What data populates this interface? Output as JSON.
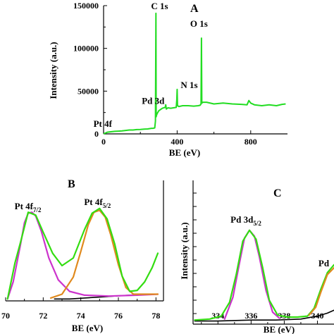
{
  "colors": {
    "survey": "#22dd22",
    "envelope": "#33dd11",
    "pt72": "#cc33cc",
    "pt52": "#e08a1e",
    "baseline": "#000000",
    "axis": "#000000"
  },
  "chart_data": [
    {
      "type": "line",
      "panel": "A",
      "xlabel": "BE (eV)",
      "ylabel": "Intensity (a.u.)",
      "xlim": [
        0,
        1000
      ],
      "ylim": [
        0,
        150000
      ],
      "xticks": [
        0,
        400,
        800
      ],
      "yticks": [
        0,
        50000,
        100000,
        150000
      ],
      "grid": false,
      "legend": "none",
      "annotations": [
        {
          "text": "C 1s",
          "x": 285,
          "y": 141000
        },
        {
          "text": "O 1s",
          "x": 532,
          "y": 112000
        },
        {
          "text": "N 1s",
          "x": 400,
          "y": 52000
        },
        {
          "text": "Pd 3d",
          "x": 338,
          "y": 35000
        },
        {
          "text": "Pt 4f",
          "x": 72,
          "y": 5000
        }
      ],
      "series": [
        {
          "x": [
            0,
            20,
            40,
            60,
            80,
            100,
            120,
            140,
            160,
            180,
            200,
            220,
            240,
            260,
            270,
            278,
            282,
            284.5,
            286,
            288,
            292,
            300,
            320,
            335,
            338,
            341,
            350,
            365,
            380,
            395,
            398,
            400,
            402,
            410,
            430,
            460,
            490,
            515,
            525,
            530,
            532,
            534,
            540,
            560,
            600,
            650,
            700,
            750,
            780,
            790,
            800,
            820,
            860,
            900,
            940,
            970,
            990
          ],
          "y": [
            0,
            2000,
            2500,
            3000,
            3200,
            3500,
            4000,
            4500,
            4500,
            5000,
            5200,
            5500,
            5800,
            6500,
            6500,
            7000,
            15000,
            141000,
            20000,
            22000,
            24000,
            27000,
            30000,
            31000,
            34000,
            29000,
            30500,
            30000,
            30500,
            31000,
            40000,
            52000,
            33000,
            32000,
            33000,
            33000,
            32500,
            33000,
            33500,
            35000,
            112000,
            36000,
            37000,
            37000,
            35000,
            36000,
            35000,
            34500,
            34000,
            39000,
            36000,
            34000,
            33000,
            34000,
            33000,
            34500,
            35000
          ]
        }
      ]
    },
    {
      "type": "line",
      "panel": "B",
      "xlabel": "BE (eV)",
      "xlim": [
        70,
        78.4
      ],
      "xticks": [
        70,
        72,
        74,
        76,
        78
      ],
      "grid": false,
      "legend": "none",
      "annotations": [
        {
          "text": "Pt 4f",
          "subscript": "7/2",
          "x": 71.3
        },
        {
          "text": "Pt 4f",
          "subscript": "5/2",
          "x": 75.0
        }
      ],
      "series": [
        {
          "role": "baseline",
          "x": [
            72.6,
            73.4,
            74.2,
            75,
            75.8,
            76.6,
            77.4,
            78.1
          ],
          "y": [
            0.02,
            0.02,
            0.03,
            0.04,
            0.05,
            0.06,
            0.07,
            0.07
          ]
        },
        {
          "role": "Pt 4f7/2 component",
          "x": [
            70.1,
            70.4,
            70.8,
            71.0,
            71.2,
            71.4,
            71.6,
            71.9,
            72.3,
            72.8,
            73.4,
            74.2,
            75.5,
            77,
            78.1
          ],
          "y": [
            0.02,
            0.2,
            0.6,
            0.82,
            0.92,
            0.93,
            0.89,
            0.73,
            0.45,
            0.22,
            0.1,
            0.06,
            0.05,
            0.06,
            0.07
          ]
        },
        {
          "role": "Pt 4f5/2 component",
          "x": [
            72.4,
            73.0,
            73.6,
            74.0,
            74.4,
            74.7,
            75.0,
            75.3,
            75.6,
            76.0,
            76.4,
            76.8,
            77.4,
            78.1
          ],
          "y": [
            0.03,
            0.07,
            0.25,
            0.52,
            0.8,
            0.93,
            0.95,
            0.88,
            0.69,
            0.38,
            0.14,
            0.07,
            0.07,
            0.07
          ]
        },
        {
          "role": "experimental envelope",
          "x": [
            70.1,
            70.5,
            70.8,
            71.2,
            71.6,
            72.0,
            72.5,
            73.0,
            73.6,
            74.2,
            74.6,
            75.0,
            75.4,
            75.8,
            76.2,
            76.6,
            77.0,
            77.4,
            77.8,
            78.1
          ],
          "y": [
            0.02,
            0.4,
            0.62,
            0.93,
            0.9,
            0.72,
            0.5,
            0.37,
            0.45,
            0.75,
            0.92,
            0.97,
            0.86,
            0.6,
            0.26,
            0.1,
            0.11,
            0.2,
            0.35,
            0.5
          ]
        }
      ]
    },
    {
      "type": "line",
      "panel": "C",
      "ylabel": "Intensity (a.u.)",
      "xlabel": "BE (eV)",
      "xlim": [
        332.5,
        341
      ],
      "xticks": [
        334,
        336,
        338,
        340
      ],
      "grid": false,
      "legend": "none",
      "annotations": [
        {
          "text": "Pd 3d",
          "subscript": "5/2",
          "x": 335.95
        },
        {
          "text": "Pd",
          "x": 340.4
        }
      ],
      "series": [
        {
          "role": "baseline",
          "x": [
            332.6,
            334,
            336,
            337.5,
            339,
            340,
            340.6,
            341
          ],
          "y": [
            0.01,
            0.01,
            0.02,
            0.02,
            0.03,
            0.06,
            0.09,
            0.12
          ]
        },
        {
          "role": "Pd 3d5/2 component",
          "x": [
            334.4,
            334.9,
            335.3,
            335.6,
            335.9,
            336.2,
            336.5,
            336.9,
            337.3,
            337.7
          ],
          "y": [
            0.03,
            0.25,
            0.6,
            0.85,
            0.93,
            0.87,
            0.66,
            0.32,
            0.1,
            0.04
          ]
        },
        {
          "role": "experimental envelope",
          "x": [
            332.6,
            333.5,
            334.2,
            334.7,
            335.1,
            335.5,
            335.9,
            336.3,
            336.7,
            337.1,
            337.6,
            338.2,
            338.8,
            339.4,
            339.8,
            340.2,
            340.6,
            341
          ],
          "y": [
            0.02,
            0.03,
            0.06,
            0.2,
            0.48,
            0.82,
            0.93,
            0.84,
            0.55,
            0.22,
            0.07,
            0.05,
            0.05,
            0.06,
            0.14,
            0.33,
            0.5,
            0.58
          ]
        },
        {
          "role": "Pd 3d3/2 component",
          "x": [
            339.5,
            339.9,
            340.2,
            340.6,
            341
          ],
          "y": [
            0.07,
            0.15,
            0.3,
            0.48,
            0.55
          ]
        }
      ]
    }
  ]
}
